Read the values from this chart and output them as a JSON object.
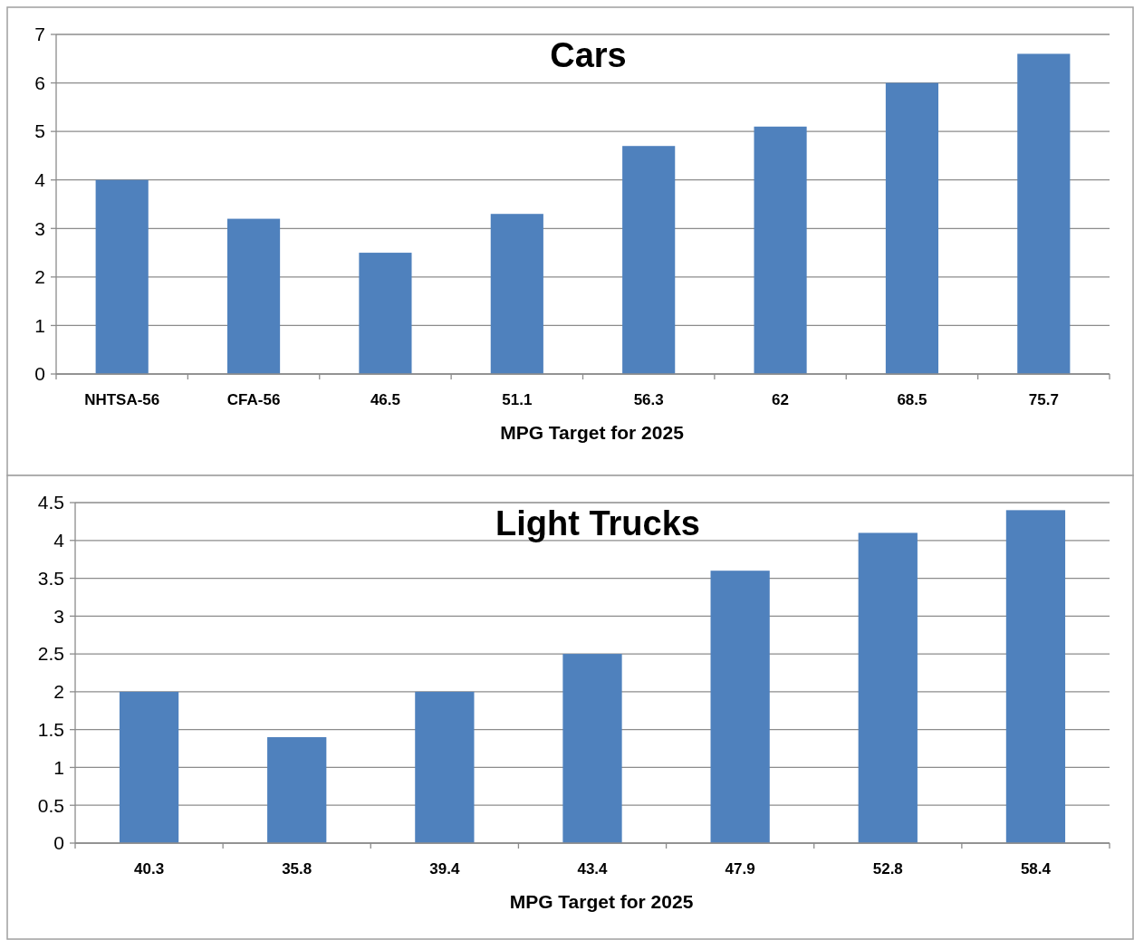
{
  "chart_data": [
    {
      "type": "bar",
      "title": "Cars",
      "xlabel": "MPG Target for 2025",
      "categories": [
        "NHTSA-56",
        "CFA-56",
        "46.5",
        "51.1",
        "56.3",
        "62",
        "68.5",
        "75.7"
      ],
      "values": [
        4.0,
        3.2,
        2.5,
        3.3,
        4.7,
        5.1,
        6.0,
        6.6
      ],
      "color": "#4f81bd",
      "ylim": [
        0,
        7
      ],
      "yticks": [
        0,
        1,
        2,
        3,
        4,
        5,
        6,
        7
      ],
      "grid": "y"
    },
    {
      "type": "bar",
      "title": "Light Trucks",
      "xlabel": "MPG Target for 2025",
      "categories": [
        "40.3",
        "35.8",
        "39.4",
        "43.4",
        "47.9",
        "52.8",
        "58.4"
      ],
      "values": [
        2.0,
        1.4,
        2.0,
        2.5,
        3.6,
        4.1,
        4.4
      ],
      "color": "#4f81bd",
      "ylim": [
        0,
        4.5
      ],
      "yticks": [
        0,
        0.5,
        1,
        1.5,
        2,
        2.5,
        3,
        3.5,
        4,
        4.5
      ],
      "grid": "y"
    }
  ]
}
